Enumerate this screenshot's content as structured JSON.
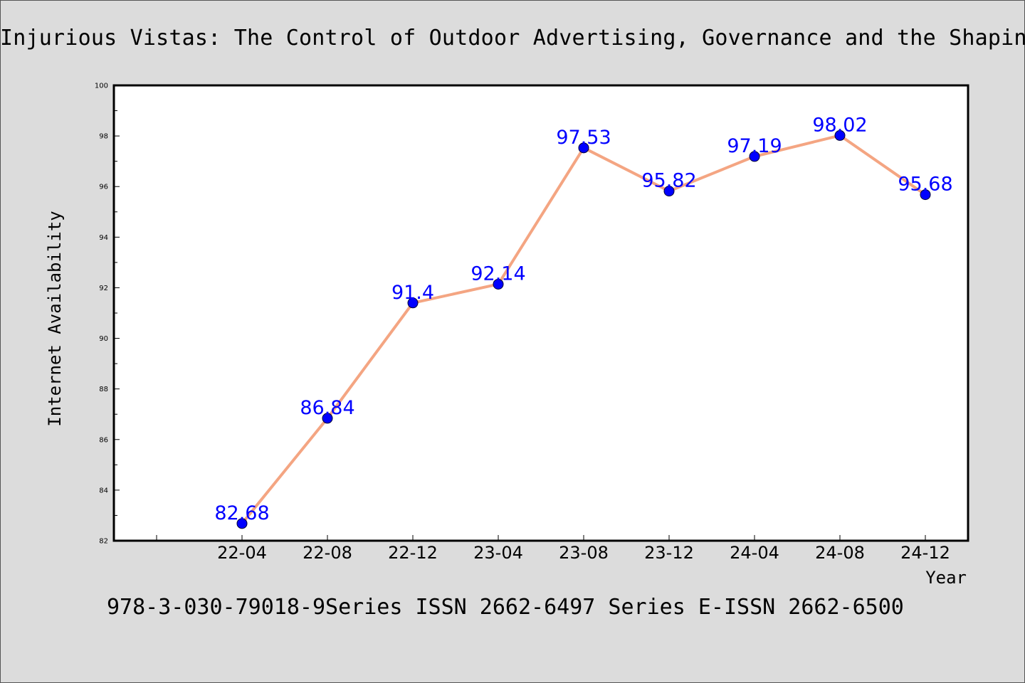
{
  "header": {
    "title": "Injurious Vistas: The Control of Outdoor Advertising, Governance and the Shaping"
  },
  "footer": {
    "text": "978-3-030-79018-9Series ISSN 2662-6497 Series E-ISSN 2662-6500"
  },
  "chart_data": {
    "type": "line",
    "title": "Injurious Vistas: The Control of Outdoor Advertising, Governance and the Shaping",
    "xlabel": "Year",
    "ylabel": "Internet Availability",
    "categories": [
      "22-04",
      "22-08",
      "22-12",
      "23-04",
      "23-08",
      "23-12",
      "24-04",
      "24-08",
      "24-12"
    ],
    "series": [
      {
        "values": [
          82.68,
          86.84,
          91.4,
          92.14,
          97.53,
          95.82,
          97.19,
          98.02,
          95.68
        ],
        "labels": [
          "82.68",
          "86.84",
          "91.4",
          "92.14",
          "97.53",
          "95.82",
          "97.19",
          "98.02",
          "95.68"
        ]
      }
    ],
    "ylim": [
      82,
      100
    ],
    "yticks": [
      82,
      84,
      86,
      88,
      90,
      92,
      94,
      96,
      98,
      100
    ],
    "grid": false,
    "legend": "none",
    "colors": {
      "line": "#f4a582",
      "marker": "#0000ff",
      "label": "#0000ff",
      "background": "#dcdcdc",
      "plot_background": "#ffffff"
    }
  }
}
